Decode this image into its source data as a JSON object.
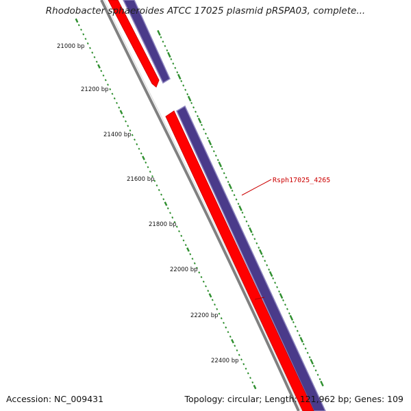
{
  "title": "Rhodobacter sphaeroides ATCC 17025 plasmid pRSPA03, complete...",
  "accession": "Accession: NC_009431",
  "summary": "Topology: circular; Length: 121,962 bp; Genes: 109",
  "gene_label": "Rsph17025_4265",
  "ticks": [
    "21000 bp",
    "21200 bp",
    "21400 bp",
    "21600 bp",
    "21800 bp",
    "22000 bp",
    "22200 bp",
    "22400 bp"
  ],
  "colors": {
    "backbone": "#808080",
    "cds": "#ff0000",
    "gene": "#4a3a8a",
    "tick": "#2f8f2f",
    "label": "#cc0000"
  }
}
